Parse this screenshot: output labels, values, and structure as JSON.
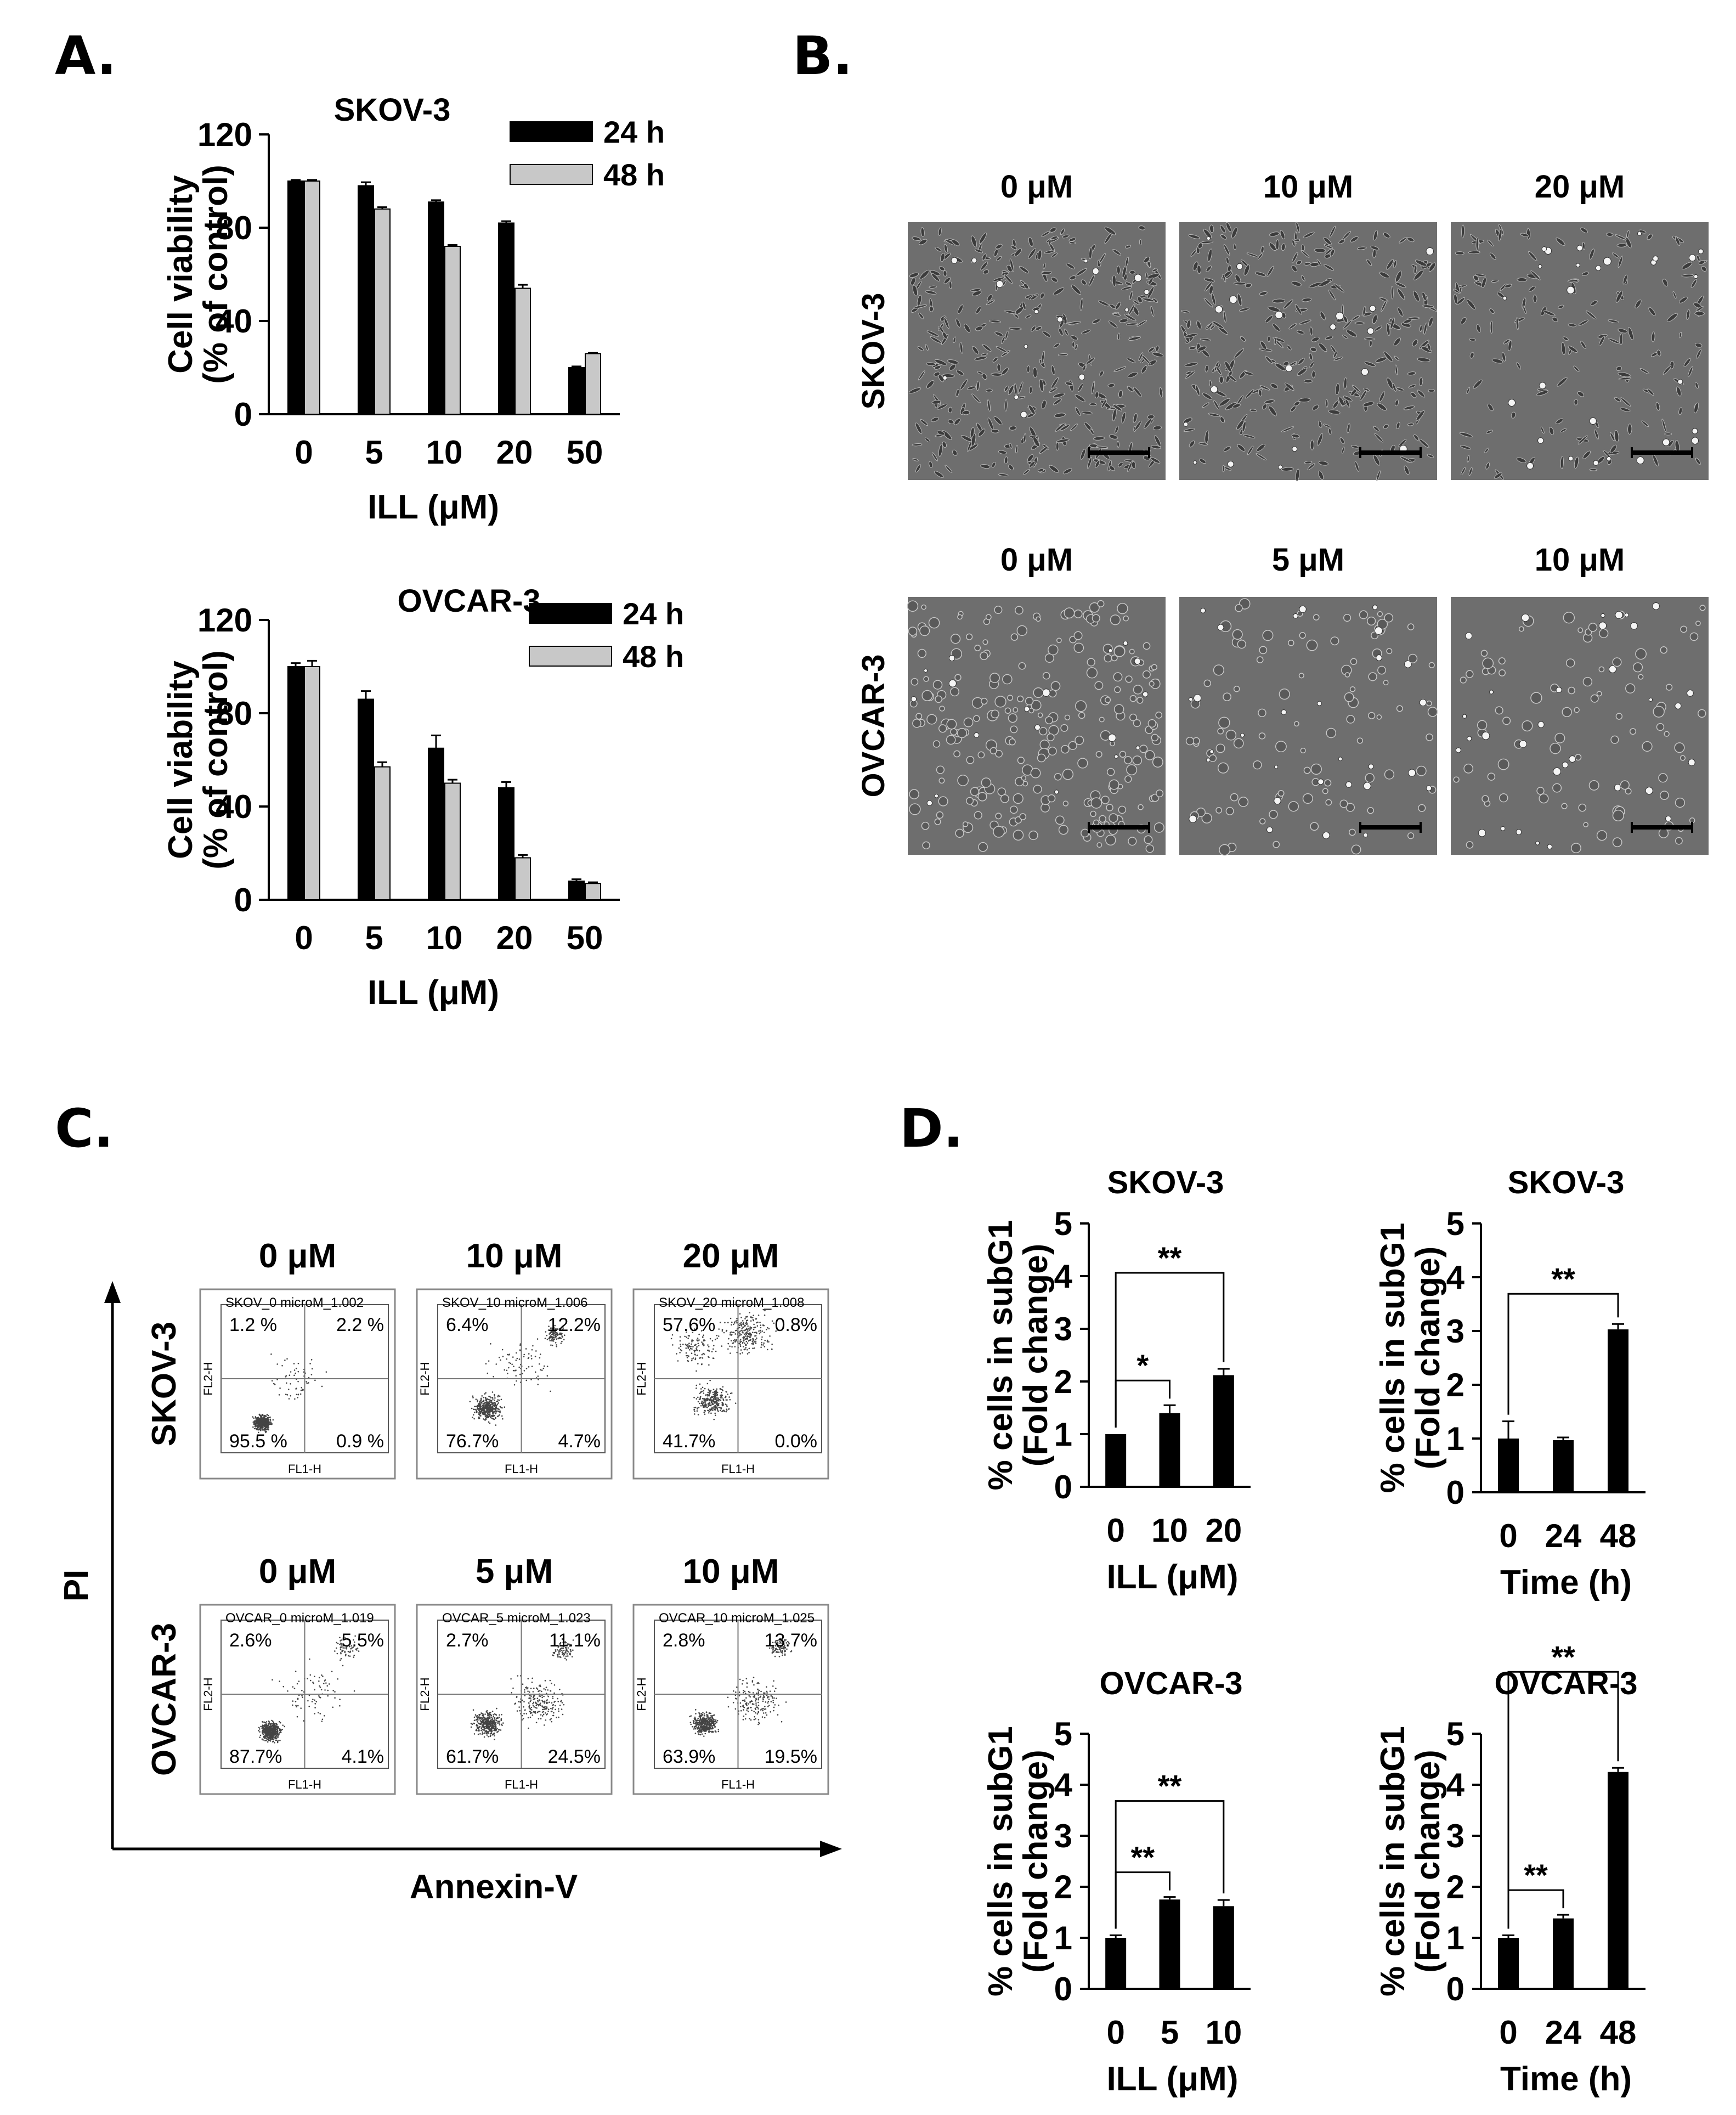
{
  "panel_labels": {
    "a": "A.",
    "b": "B.",
    "c": "C.",
    "d": "D."
  },
  "colors": {
    "bar_24h": "#000000",
    "bar_48h": "#c8c8c8",
    "micro_bg": "#6e6e6e"
  },
  "panelB": {
    "row1_label": "SKOV-3",
    "row2_label": "OVCAR-3",
    "row1_conc": [
      "0 μM",
      "10 μM",
      "20 μM"
    ],
    "row2_conc": [
      "0 μM",
      "5 μM",
      "10 μM"
    ],
    "cell_density": [
      0.95,
      0.8,
      0.45,
      0.85,
      0.35,
      0.3
    ]
  },
  "panelC": {
    "ylabel": "PI",
    "xlabel": "Annexin-V",
    "row1_label": "SKOV-3",
    "row2_label": "OVCAR-3",
    "row1_conc": [
      "0 μM",
      "10 μM",
      "20 μM"
    ],
    "row2_conc": [
      "0 μM",
      "5 μM",
      "10 μM"
    ],
    "axis_y": "FL2-H",
    "axis_x": "FL1-H",
    "plots": [
      {
        "title": "SKOV_0 microM_1.002",
        "q": [
          "1.2 %",
          "2.2 %",
          "95.5 %",
          "0.9 %"
        ]
      },
      {
        "title": "SKOV_10 microM_1.006",
        "q": [
          "6.4%",
          "12.2%",
          "76.7%",
          "4.7%"
        ]
      },
      {
        "title": "SKOV_20 microM_1.008",
        "q": [
          "57.6%",
          "0.8%",
          "41.7%",
          "0.0%"
        ]
      },
      {
        "title": "OVCAR_0 microM_1.019",
        "q": [
          "2.6%",
          "5.5%",
          "87.7%",
          "4.1%"
        ]
      },
      {
        "title": "OVCAR_5 microM_1.023",
        "q": [
          "2.7%",
          "11.1%",
          "61.7%",
          "24.5%"
        ]
      },
      {
        "title": "OVCAR_10 microM_1.025",
        "q": [
          "2.8%",
          "13.7%",
          "63.9%",
          "19.5%"
        ]
      }
    ]
  },
  "chart_data": [
    {
      "panel": "A",
      "type": "bar",
      "title": "SKOV-3",
      "categories": [
        "0",
        "5",
        "10",
        "20",
        "50"
      ],
      "series": [
        {
          "name": "24 h",
          "values": [
            100,
            98,
            91,
            82,
            20
          ],
          "errors": [
            0.5,
            1.5,
            0.8,
            0.8,
            0.5
          ]
        },
        {
          "name": "48 h",
          "values": [
            100,
            88,
            72,
            54,
            26
          ],
          "errors": [
            0.5,
            0.8,
            0.6,
            1.5,
            0.3
          ]
        }
      ],
      "xlabel": "ILL (μM)",
      "ylabel": [
        "Cell viability",
        "(% of control)"
      ],
      "ylim": [
        0,
        120
      ],
      "yticks": [
        "0",
        "40",
        "80",
        "120"
      ],
      "legend": "top-right"
    },
    {
      "panel": "A",
      "type": "bar",
      "title": "OVCAR-3",
      "categories": [
        "0",
        "5",
        "10",
        "20",
        "50"
      ],
      "series": [
        {
          "name": "24 h",
          "values": [
            100,
            86,
            65,
            48,
            8
          ],
          "errors": [
            1.5,
            3.5,
            5.5,
            2.5,
            0.8
          ]
        },
        {
          "name": "48 h",
          "values": [
            100,
            57,
            50,
            18,
            7
          ],
          "errors": [
            2.5,
            2.0,
            1.5,
            1.2,
            0.5
          ]
        }
      ],
      "xlabel": "ILL (μM)",
      "ylabel": [
        "Cell viability",
        "(% of control)"
      ],
      "ylim": [
        0,
        120
      ],
      "yticks": [
        "0",
        "40",
        "80",
        "120"
      ],
      "legend": "top-right"
    },
    {
      "panel": "D",
      "type": "bar",
      "title": "SKOV-3",
      "categories": [
        "0",
        "10",
        "20"
      ],
      "values": [
        1.0,
        1.4,
        2.12
      ],
      "errors": [
        0.0,
        0.15,
        0.12
      ],
      "xlabel": "ILL (μM)",
      "ylabel": [
        "% cells in subG1",
        "(Fold change)"
      ],
      "ylim": [
        0,
        5
      ],
      "yticks": [
        "0",
        "1",
        "2",
        "3",
        "4",
        "5"
      ],
      "significance": [
        {
          "from": 0,
          "to": 1,
          "label": "*"
        },
        {
          "from": 0,
          "to": 2,
          "label": "**"
        }
      ]
    },
    {
      "panel": "D",
      "type": "bar",
      "title": "SKOV-3",
      "categories": [
        "0",
        "24",
        "48"
      ],
      "values": [
        1.0,
        0.97,
        3.03
      ],
      "errors": [
        0.32,
        0.05,
        0.1
      ],
      "xlabel": "Time (h)",
      "ylabel": [
        "% cells in subG1",
        "(Fold change)"
      ],
      "ylim": [
        0,
        5
      ],
      "yticks": [
        "0",
        "1",
        "2",
        "3",
        "4",
        "5"
      ],
      "significance": [
        {
          "from": 0,
          "to": 2,
          "label": "**"
        }
      ]
    },
    {
      "panel": "D",
      "type": "bar",
      "title": "OVCAR-3",
      "categories": [
        "0",
        "5",
        "10"
      ],
      "values": [
        1.0,
        1.75,
        1.62
      ],
      "errors": [
        0.05,
        0.05,
        0.12
      ],
      "xlabel": "ILL (μM)",
      "ylabel": [
        "% cells in subG1",
        "(Fold change)"
      ],
      "ylim": [
        0,
        5
      ],
      "yticks": [
        "0",
        "1",
        "2",
        "3",
        "4",
        "5"
      ],
      "significance": [
        {
          "from": 0,
          "to": 1,
          "label": "**"
        },
        {
          "from": 0,
          "to": 2,
          "label": "**"
        }
      ]
    },
    {
      "panel": "D",
      "type": "bar",
      "title": "OVCAR-3",
      "categories": [
        "0",
        "24",
        "48"
      ],
      "values": [
        1.0,
        1.38,
        4.25
      ],
      "errors": [
        0.05,
        0.07,
        0.08
      ],
      "xlabel": "Time (h)",
      "ylabel": [
        "% cells in subG1",
        "(Fold change)"
      ],
      "ylim": [
        0,
        5
      ],
      "yticks": [
        "0",
        "1",
        "2",
        "3",
        "4",
        "5"
      ],
      "significance": [
        {
          "from": 0,
          "to": 1,
          "label": "**"
        },
        {
          "from": 0,
          "to": 2,
          "label": "**"
        }
      ]
    }
  ]
}
